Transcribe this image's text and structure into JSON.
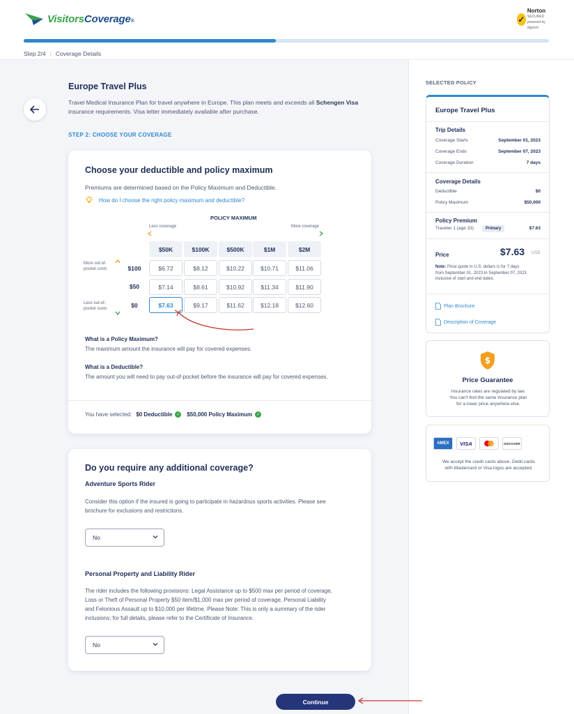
{
  "header": {
    "logo_part1": "Visitors",
    "logo_part2": "Coverage",
    "logo_tm": "®",
    "norton_label": "Norton",
    "norton_sub": "SECURED",
    "norton_small": "powered by digicert",
    "progress_fraction": 0.48,
    "step": "Step 2/4",
    "step_name": "Coverage Details"
  },
  "plan": {
    "title": "Europe Travel Plus",
    "desc_pre": "Travel Medical Insurance Plan for travel anywhere in Europe. This plan meets and exceeds all ",
    "desc_bold": "Schengen Visa",
    "desc_post": " insurance requirements. Visa letter immediately available after purchase.",
    "step_label": "STEP 2: CHOOSE YOUR COVERAGE"
  },
  "deductible_card": {
    "heading": "Choose your deductible and policy maximum",
    "subtext": "Premiums are determined based on the Policy Maximum and Deductible.",
    "help_link": "How do I choose the right policy maximum and deductible?",
    "policy_maximum_label": "POLICY MAXIMUM",
    "less_coverage": "Less coverage",
    "more_coverage": "More coverage",
    "more_oop": "More out-of-pocket costs",
    "less_oop": "Less out-of-pocket costs",
    "columns": [
      "$50K",
      "$100K",
      "$500K",
      "$1M",
      "$2M"
    ],
    "rows": [
      {
        "deductible": "$100",
        "prices": [
          "$6.72",
          "$8.12",
          "$10.22",
          "$10.71",
          "$11.06"
        ]
      },
      {
        "deductible": "$50",
        "prices": [
          "$7.14",
          "$8.61",
          "$10.92",
          "$11.34",
          "$11.90"
        ]
      },
      {
        "deductible": "$0",
        "prices": [
          "$7.63",
          "$9.17",
          "$11.62",
          "$12.18",
          "$12.60"
        ]
      }
    ],
    "pm_q": "What is a Policy Maximum?",
    "pm_a": "The maximum amount the insurance will pay for covered expenses.",
    "ded_q": "What is a Deductible?",
    "ded_a": "The amount you will need to pay out-of-pocket before the insurance will pay for covered expenses.",
    "you_selected": "You have selected:",
    "selected_deductible": "$0 Deductible",
    "selected_max": "$50,000 Policy Maximum"
  },
  "additional_card": {
    "heading": "Do you require any additional coverage?",
    "adventure_title": "Adventure Sports Rider",
    "adventure_line1": "Consider this option if the insured is going to participate in hazardous sports activities. Please see",
    "adventure_line2": "brochure for exclusions and restrictions.",
    "adventure_value": "No",
    "property_title": "Personal Property and Liability Rider",
    "property_line1": "The rider includes the following provisions: Legal Assistance up to $500 max per period of coverage,",
    "property_line2": "Loss or Theft of Personal Property $50 item/$1,000 max per period of coverage, Personal Liability",
    "property_line3": "and Felonious Assault up to $10,000 per lifetime. Please Note: This is only a summary of the rider",
    "property_line4": "inclusions; for full details, please refer to the Certificate of Insurance.",
    "property_value": "No"
  },
  "continue_label": "Continue",
  "sidebar": {
    "selected_policy": "SELECTED POLICY",
    "plan_name": "Europe Travel Plus",
    "trip_details": "Trip Details",
    "coverage_starts_label": "Coverage Starts",
    "coverage_starts": "September 01, 2023",
    "coverage_ends_label": "Coverage Ends",
    "coverage_ends": "September 07, 2023",
    "duration_label": "Coverage Duration",
    "duration": "7 days",
    "coverage_details": "Coverage Details",
    "deductible_label": "Deductible",
    "deductible": "$0",
    "policy_max_label": "Policy Maximum",
    "policy_max": "$50,000",
    "policy_premium": "Policy Premium",
    "traveler": "Traveler 1 (age 33)",
    "primary": "Primary",
    "traveler_price": "$7.63",
    "price_label": "Price",
    "price": "$7.63",
    "currency": "USD",
    "note_label": "Note:",
    "note_line1": " Price quote in U.S. dollars is for 7 days",
    "note_line2": "from September 01, 2023 to September 07, 2023",
    "note_line3": "inclusive of start and end dates.",
    "brochure": "Plan Brochure",
    "description": "Description of Coverage",
    "guarantee_title": "Price Guarantee",
    "guarantee_line1": "Insurance rates are regulated by law.",
    "guarantee_line2": "You can't find the same insurance plan",
    "guarantee_line3": "for a lower price anywhere else.",
    "card_amex": "AMEX",
    "card_visa": "VISA",
    "card_discover": "DISCOVER",
    "cards_line1": "We accept the credit cards above. Debit cards",
    "cards_line2": "with Mastercard or Visa logos are accepted."
  },
  "colors": {
    "accent_blue": "#2e87cf",
    "navy": "#25357a",
    "brand_green": "#3aa34a",
    "arrow_red": "#c0392b"
  }
}
